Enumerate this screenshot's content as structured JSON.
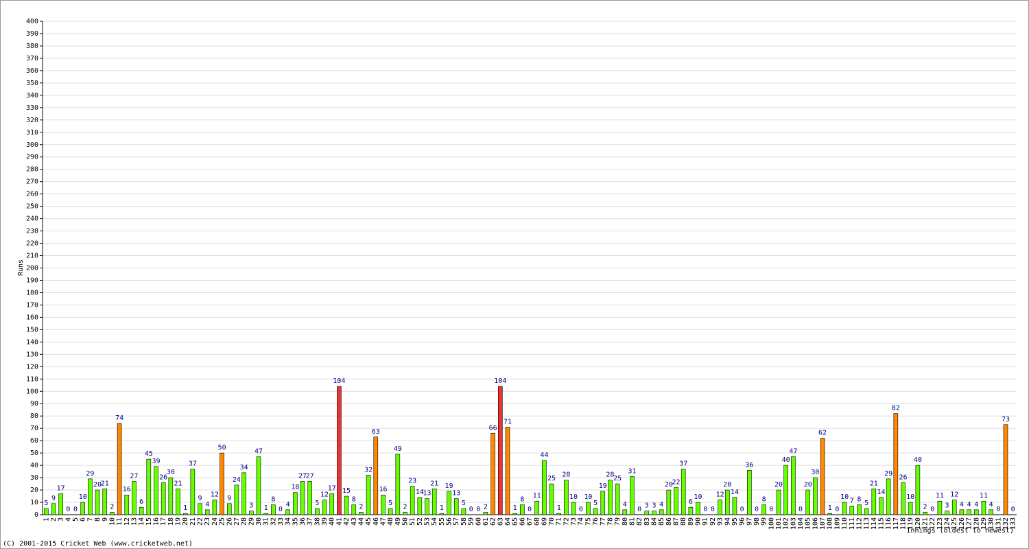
{
  "chart_data": {
    "type": "bar",
    "y_label": "Runs",
    "x_label": "Innings (oldest to newest)",
    "footer": "(C) 2001-2015 Cricket Web (www.cricketweb.net)",
    "categories": [
      1,
      2,
      3,
      4,
      5,
      6,
      7,
      8,
      9,
      10,
      11,
      12,
      13,
      14,
      15,
      16,
      17,
      18,
      19,
      20,
      21,
      22,
      23,
      24,
      25,
      26,
      27,
      28,
      29,
      30,
      31,
      32,
      33,
      34,
      35,
      36,
      37,
      38,
      39,
      40,
      41,
      42,
      43,
      44,
      45,
      46,
      47,
      48,
      49,
      50,
      51,
      52,
      53,
      54,
      55,
      56,
      57,
      58,
      59,
      60,
      61,
      62,
      63,
      64,
      65,
      66,
      67,
      68,
      69,
      70,
      71,
      72,
      73,
      74,
      75,
      76,
      77,
      78,
      79,
      80,
      81,
      82,
      83,
      84,
      85,
      86,
      87,
      88,
      89,
      90,
      91,
      92,
      93,
      94,
      95,
      96,
      97,
      98,
      99,
      100,
      101,
      102,
      103,
      104,
      105,
      106,
      107,
      108,
      109,
      110,
      111,
      112,
      113,
      114,
      115,
      116,
      117,
      118,
      119,
      120,
      121,
      122,
      123,
      124,
      125,
      126,
      127,
      128,
      129,
      130,
      131,
      132,
      133
    ],
    "values": [
      5,
      9,
      17,
      0,
      0,
      10,
      29,
      20,
      21,
      2,
      74,
      16,
      27,
      6,
      45,
      39,
      26,
      30,
      21,
      1,
      37,
      9,
      4,
      12,
      50,
      9,
      24,
      34,
      3,
      47,
      1,
      8,
      0,
      4,
      18,
      27,
      27,
      5,
      12,
      17,
      104,
      15,
      8,
      2,
      32,
      63,
      16,
      5,
      49,
      2,
      23,
      14,
      13,
      21,
      1,
      19,
      13,
      5,
      0,
      0,
      2,
      66,
      104,
      71,
      1,
      8,
      0,
      11,
      44,
      25,
      1,
      28,
      10,
      0,
      10,
      5,
      19,
      28,
      25,
      4,
      31,
      0,
      3,
      3,
      4,
      20,
      22,
      37,
      6,
      10,
      0,
      0,
      12,
      20,
      14,
      0,
      36,
      0,
      8,
      0,
      20,
      40,
      47,
      0,
      20,
      30,
      62,
      1,
      0,
      10,
      7,
      8,
      5,
      21,
      14,
      29,
      82,
      26,
      10,
      40,
      2,
      0,
      11,
      3,
      12,
      4,
      4,
      4,
      11,
      4,
      0,
      73,
      0
    ],
    "colors": [
      "#6f0",
      "#6f0",
      "#6f0",
      "#6f0",
      "#6f0",
      "#6f0",
      "#6f0",
      "#6f0",
      "#6f0",
      "#6f0",
      "#f80",
      "#6f0",
      "#6f0",
      "#6f0",
      "#6f0",
      "#6f0",
      "#6f0",
      "#6f0",
      "#6f0",
      "#6f0",
      "#6f0",
      "#6f0",
      "#6f0",
      "#6f0",
      "#f80",
      "#6f0",
      "#6f0",
      "#6f0",
      "#6f0",
      "#6f0",
      "#6f0",
      "#6f0",
      "#6f0",
      "#6f0",
      "#6f0",
      "#6f0",
      "#6f0",
      "#6f0",
      "#6f0",
      "#6f0",
      "#e33",
      "#6f0",
      "#6f0",
      "#6f0",
      "#6f0",
      "#f80",
      "#6f0",
      "#6f0",
      "#6f0",
      "#6f0",
      "#6f0",
      "#6f0",
      "#6f0",
      "#6f0",
      "#6f0",
      "#6f0",
      "#6f0",
      "#6f0",
      "#6f0",
      "#6f0",
      "#6f0",
      "#f80",
      "#e33",
      "#f80",
      "#6f0",
      "#6f0",
      "#6f0",
      "#6f0",
      "#6f0",
      "#6f0",
      "#6f0",
      "#6f0",
      "#6f0",
      "#6f0",
      "#6f0",
      "#6f0",
      "#6f0",
      "#6f0",
      "#6f0",
      "#6f0",
      "#6f0",
      "#6f0",
      "#6f0",
      "#6f0",
      "#6f0",
      "#6f0",
      "#6f0",
      "#6f0",
      "#6f0",
      "#6f0",
      "#6f0",
      "#6f0",
      "#6f0",
      "#6f0",
      "#6f0",
      "#6f0",
      "#6f0",
      "#6f0",
      "#6f0",
      "#6f0",
      "#6f0",
      "#6f0",
      "#6f0",
      "#6f0",
      "#6f0",
      "#6f0",
      "#f80",
      "#6f0",
      "#6f0",
      "#6f0",
      "#6f0",
      "#6f0",
      "#6f0",
      "#6f0",
      "#6f0",
      "#6f0",
      "#f80",
      "#6f0",
      "#6f0",
      "#6f0",
      "#6f0",
      "#6f0",
      "#6f0",
      "#6f0",
      "#6f0",
      "#6f0",
      "#6f0",
      "#6f0",
      "#6f0",
      "#6f0",
      "#6f0",
      "#f80",
      "#6f0"
    ],
    "ylim": [
      0,
      400
    ],
    "yticks": [
      0,
      10,
      20,
      30,
      40,
      50,
      60,
      70,
      80,
      90,
      100,
      110,
      120,
      130,
      140,
      150,
      160,
      170,
      180,
      190,
      200,
      210,
      220,
      230,
      240,
      250,
      260,
      270,
      280,
      290,
      300,
      310,
      320,
      330,
      340,
      350,
      360,
      370,
      380,
      390,
      400
    ],
    "grid": true
  }
}
